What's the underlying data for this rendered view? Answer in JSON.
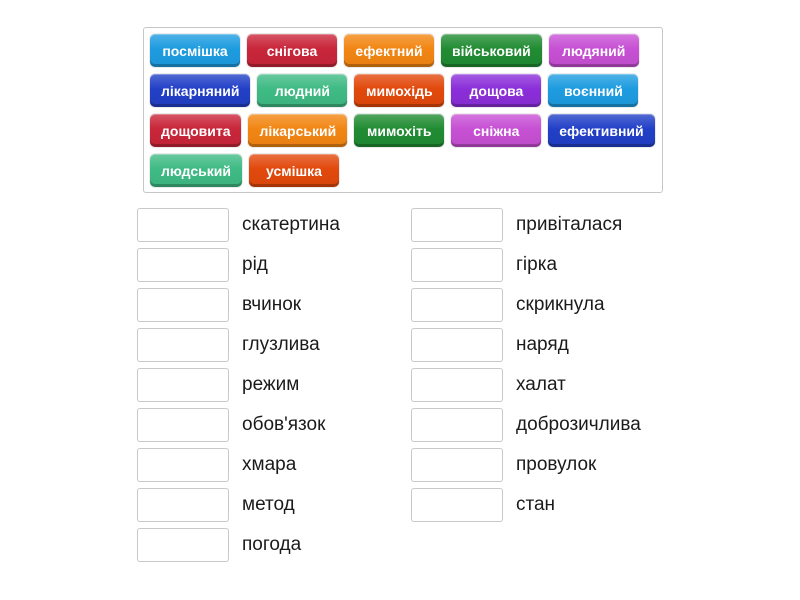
{
  "page": {
    "background": "#ffffff"
  },
  "colors": {
    "blue": "#1E9CE0",
    "crimson": "#C9263A",
    "orange": "#F28613",
    "green": "#218C33",
    "orchid": "#C750D4",
    "royalblue": "#2240C7",
    "seagreen": "#3FBB85",
    "redorange": "#E2490C",
    "violet": "#8B2FD9"
  },
  "word_bank": {
    "rows": [
      [
        {
          "label": "посмішка",
          "color": "blue"
        },
        {
          "label": "снігова",
          "color": "crimson"
        },
        {
          "label": "ефектний",
          "color": "orange"
        },
        {
          "label": "військовий",
          "color": "green"
        },
        {
          "label": "людяний",
          "color": "orchid"
        }
      ],
      [
        {
          "label": "лікарняний",
          "color": "royalblue"
        },
        {
          "label": "людний",
          "color": "seagreen"
        },
        {
          "label": "мимохідь",
          "color": "redorange"
        },
        {
          "label": "дощова",
          "color": "violet"
        },
        {
          "label": "воєнний",
          "color": "blue"
        }
      ],
      [
        {
          "label": "дощовита",
          "color": "crimson"
        },
        {
          "label": "лікарський",
          "color": "orange"
        },
        {
          "label": "мимохіть",
          "color": "green"
        },
        {
          "label": "сніжна",
          "color": "orchid"
        },
        {
          "label": "ефективний",
          "color": "royalblue"
        }
      ],
      [
        {
          "label": "людський",
          "color": "seagreen"
        },
        {
          "label": "усмішка",
          "color": "redorange"
        }
      ]
    ]
  },
  "match_list": {
    "left": [
      "скатертина",
      "рід",
      "вчинок",
      "глузлива",
      "режим",
      "обов'язок",
      "хмара",
      "метод",
      "погода"
    ],
    "right": [
      "привіталася",
      "гірка",
      "скрикнула",
      "наряд",
      "халат",
      "доброзичлива",
      "провулок",
      "стан"
    ]
  }
}
